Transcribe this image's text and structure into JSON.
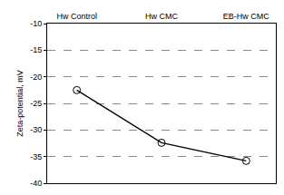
{
  "chart_data": {
    "type": "line",
    "categories": [
      "Hw Control",
      "Hw CMC",
      "EB-Hw CMC"
    ],
    "values": [
      -22.5,
      -32.4,
      -35.8
    ],
    "y_label": "Zeta-potential, mV",
    "ylim": [
      -40,
      -10
    ],
    "yticks": [
      -40,
      -35,
      -30,
      -25,
      -20,
      -15,
      -10
    ],
    "grid": true,
    "color": "#000000",
    "marker": "circle-open",
    "line_style": "solid"
  }
}
